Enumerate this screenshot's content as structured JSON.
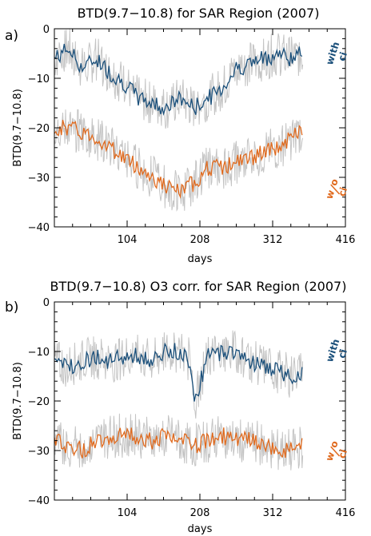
{
  "chart_data": [
    {
      "type": "line",
      "panel_label": "a)",
      "title": "BTD(9.7−10.8) for SAR Region (2007)",
      "xlabel": "days",
      "ylabel": "BTD(9.7−10.8)",
      "xlim": [
        0,
        416
      ],
      "ylim": [
        -40,
        0
      ],
      "xticks": [
        "104",
        "208",
        "312",
        "416"
      ],
      "yticks": [
        "0",
        "−10",
        "−20",
        "−30",
        "−40"
      ],
      "grid": false,
      "legend": "right, rotated labels",
      "series": [
        {
          "name": "with ci",
          "legend_parts": [
            "with",
            "ci"
          ],
          "color": "#1a4f7a",
          "raw_color": "#c4c4c4",
          "x": [
            0,
            20,
            40,
            60,
            80,
            100,
            120,
            140,
            160,
            180,
            200,
            220,
            240,
            260,
            280,
            300,
            320,
            340,
            355
          ],
          "y": [
            -6,
            -4,
            -8,
            -6,
            -9,
            -11,
            -14,
            -15,
            -16,
            -14,
            -16,
            -14,
            -12,
            -8,
            -7,
            -6,
            -5,
            -6,
            -5
          ]
        },
        {
          "name": "w/o ci",
          "legend_parts": [
            "w",
            "o",
            "ci"
          ],
          "color": "#e06a1e",
          "raw_color": "#c4c4c4",
          "x": [
            0,
            20,
            40,
            60,
            80,
            100,
            120,
            140,
            160,
            180,
            200,
            220,
            240,
            260,
            280,
            300,
            320,
            340,
            355
          ],
          "y": [
            -20,
            -20,
            -21,
            -22,
            -24,
            -26,
            -28,
            -30,
            -32,
            -33,
            -31,
            -28,
            -28,
            -27,
            -26,
            -25,
            -24,
            -22,
            -20
          ]
        }
      ]
    },
    {
      "type": "line",
      "panel_label": "b)",
      "title": "BTD(9.7−10.8) O3 corr. for SAR Region (2007)",
      "xlabel": "days",
      "ylabel": "BTD(9.7−10.8)",
      "xlim": [
        0,
        416
      ],
      "ylim": [
        -40,
        0
      ],
      "xticks": [
        "104",
        "208",
        "312",
        "416"
      ],
      "yticks": [
        "0",
        "−10",
        "−20",
        "−30",
        "−40"
      ],
      "grid": false,
      "legend": "right, rotated labels",
      "series": [
        {
          "name": "with ci",
          "legend_parts": [
            "with",
            "ci"
          ],
          "color": "#1a4f7a",
          "raw_color": "#c4c4c4",
          "x": [
            0,
            20,
            40,
            60,
            80,
            100,
            120,
            140,
            160,
            180,
            195,
            200,
            220,
            240,
            260,
            280,
            300,
            320,
            340,
            355
          ],
          "y": [
            -12,
            -13,
            -12,
            -11,
            -12,
            -11,
            -11,
            -12,
            -10,
            -10,
            -12,
            -20,
            -11,
            -10,
            -10,
            -12,
            -13,
            -14,
            -15,
            -14
          ]
        },
        {
          "name": "w/o ci",
          "legend_parts": [
            "w",
            "o",
            "ci"
          ],
          "color": "#e06a1e",
          "raw_color": "#c4c4c4",
          "x": [
            0,
            20,
            40,
            60,
            80,
            100,
            120,
            140,
            160,
            180,
            200,
            220,
            240,
            260,
            280,
            300,
            320,
            340,
            355
          ],
          "y": [
            -28,
            -29,
            -30,
            -28,
            -27,
            -27,
            -27,
            -28,
            -27,
            -28,
            -29,
            -28,
            -27,
            -28,
            -28,
            -29,
            -30,
            -30,
            -29
          ]
        }
      ]
    }
  ]
}
